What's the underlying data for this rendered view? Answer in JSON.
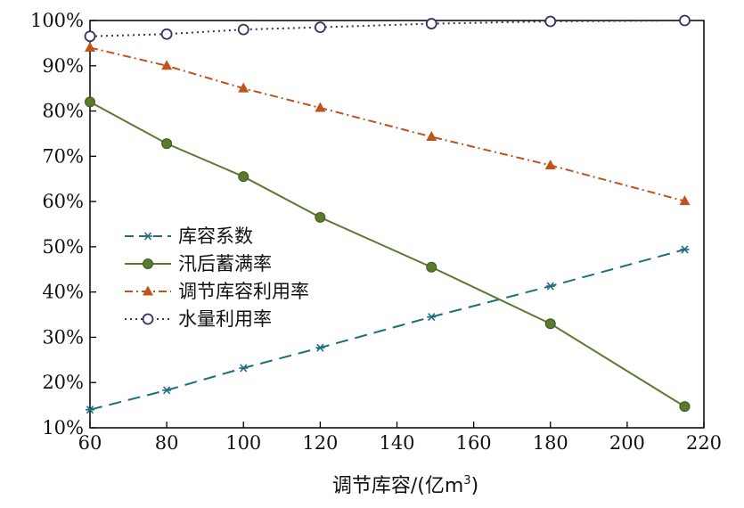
{
  "chart_data": {
    "type": "line",
    "x": [
      60,
      80,
      100,
      120,
      149,
      180,
      215
    ],
    "xlabel": "调节库容/(亿m³)",
    "xlabel_main": "调节库容/(亿m",
    "xlabel_sup": "3",
    "xlabel_tail": ")",
    "ylabel": "",
    "xlim": [
      60,
      220
    ],
    "ylim": [
      10,
      100
    ],
    "xticks": [
      "60",
      "80",
      "100",
      "120",
      "140",
      "160",
      "180",
      "200",
      "220"
    ],
    "yticks": [
      "10%",
      "20%",
      "30%",
      "40%",
      "50%",
      "60%",
      "70%",
      "80%",
      "90%",
      "100%"
    ],
    "grid": false,
    "legend_position": "left-center",
    "series": [
      {
        "name": "库容系数",
        "marker": "asterisk",
        "line": "dashed",
        "color": "#1f6e7c",
        "values": [
          14,
          18.3,
          23.2,
          27.7,
          34.5,
          41.3,
          49.4
        ]
      },
      {
        "name": "汛后蓄满率",
        "marker": "filled-circle",
        "line": "solid",
        "color": "#5b7a2e",
        "values": [
          82,
          72.8,
          65.5,
          56.5,
          45.5,
          33,
          14.7
        ]
      },
      {
        "name": "调节库容利用率",
        "marker": "triangle",
        "line": "dash-dot",
        "color": "#c0521b",
        "values": [
          94,
          90,
          85,
          80.7,
          74.3,
          68,
          60.1
        ]
      },
      {
        "name": "水量利用率",
        "marker": "open-circle",
        "line": "dotted",
        "color": "#3d2e63",
        "values": [
          96.5,
          97,
          98,
          98.5,
          99.3,
          99.8,
          100
        ]
      }
    ]
  }
}
